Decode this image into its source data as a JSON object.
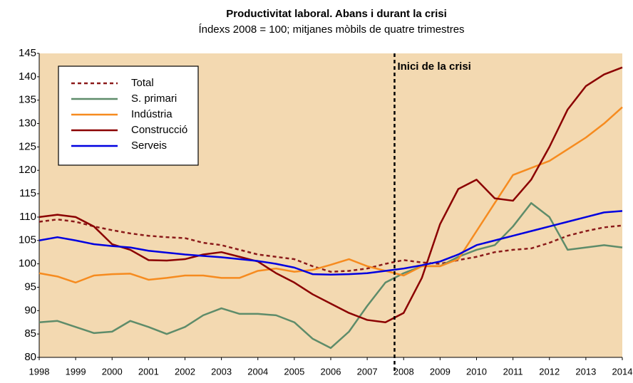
{
  "chart_data": {
    "type": "line",
    "title": "Productivitat laboral. Abans i durant la crisi",
    "subtitle": "Índexs 2008 = 100; mitjanes mòbils de quatre trimestres",
    "x": [
      1998,
      1998.5,
      1999,
      1999.5,
      2000,
      2000.5,
      2001,
      2001.5,
      2002,
      2002.5,
      2003,
      2003.5,
      2004,
      2004.5,
      2005,
      2005.5,
      2006,
      2006.5,
      2007,
      2007.5,
      2008,
      2008.5,
      2009,
      2009.5,
      2010,
      2010.5,
      2011,
      2011.5,
      2012,
      2012.5,
      2013,
      2013.5,
      2014
    ],
    "series": [
      {
        "name": "Total",
        "color": "#8b1a1a",
        "dashed": true,
        "values": [
          109,
          109.5,
          109,
          108,
          107.2,
          106.5,
          106,
          105.7,
          105.5,
          104.5,
          104,
          103,
          102,
          101.5,
          101,
          99.5,
          98.3,
          98.5,
          99,
          100,
          100.8,
          100.3,
          100,
          100.8,
          101.5,
          102.5,
          103,
          103.3,
          104.5,
          106,
          107,
          107.8,
          108.2
        ]
      },
      {
        "name": "S. primari",
        "color": "#5e8c6a",
        "values": [
          87.5,
          87.8,
          86.5,
          85.2,
          85.5,
          87.8,
          86.5,
          85,
          86.5,
          89,
          90.5,
          89.3,
          89.3,
          89,
          87.5,
          84,
          82,
          85.5,
          91,
          96,
          98,
          99.5,
          99.5,
          101.5,
          103,
          104,
          108,
          113,
          110,
          103,
          103.5,
          104,
          103.5
        ]
      },
      {
        "name": "Indústria",
        "color": "#f68b1f",
        "values": [
          98,
          97.3,
          96,
          97.5,
          97.8,
          97.9,
          96.6,
          97,
          97.5,
          97.5,
          97,
          97,
          98.5,
          99,
          98.3,
          98.7,
          99.8,
          101,
          99.5,
          98.5,
          97.5,
          99.5,
          99.5,
          101,
          107,
          113,
          119,
          120.5,
          122,
          124.5,
          127,
          130,
          133.5
        ]
      },
      {
        "name": "Construcció",
        "color": "#8b0000",
        "values": [
          110,
          110.5,
          110,
          108,
          104.2,
          103,
          100.8,
          100.7,
          101,
          102,
          102.5,
          101.5,
          100.5,
          98,
          96,
          93.5,
          91.5,
          89.5,
          88,
          87.5,
          89.5,
          97,
          108.5,
          116,
          118,
          114,
          113.5,
          118,
          125,
          133,
          138,
          140.5,
          142
        ]
      },
      {
        "name": "Serveis",
        "color": "#0000e0",
        "values": [
          105,
          105.7,
          105,
          104.2,
          103.8,
          103.5,
          102.8,
          102.4,
          102,
          101.7,
          101.4,
          101,
          100.6,
          100,
          99.2,
          97.8,
          97.7,
          97.8,
          98,
          98.5,
          99,
          99.7,
          100.5,
          102,
          104,
          105,
          106,
          107,
          108,
          109,
          110,
          111,
          111.3
        ]
      }
    ],
    "annotation": {
      "text": "Inici de la crisi",
      "x": 2007.75
    },
    "xlim": [
      1998,
      2014
    ],
    "xticks": [
      1998,
      1999,
      2000,
      2001,
      2002,
      2003,
      2004,
      2005,
      2006,
      2007,
      2008,
      2009,
      2010,
      2011,
      2012,
      2013,
      2014
    ],
    "ylim": [
      80,
      145
    ],
    "yticks": [
      80,
      85,
      90,
      95,
      100,
      105,
      110,
      115,
      120,
      125,
      130,
      135,
      140,
      145
    ],
    "background": "#f3d9b1",
    "legend": "upper left"
  }
}
